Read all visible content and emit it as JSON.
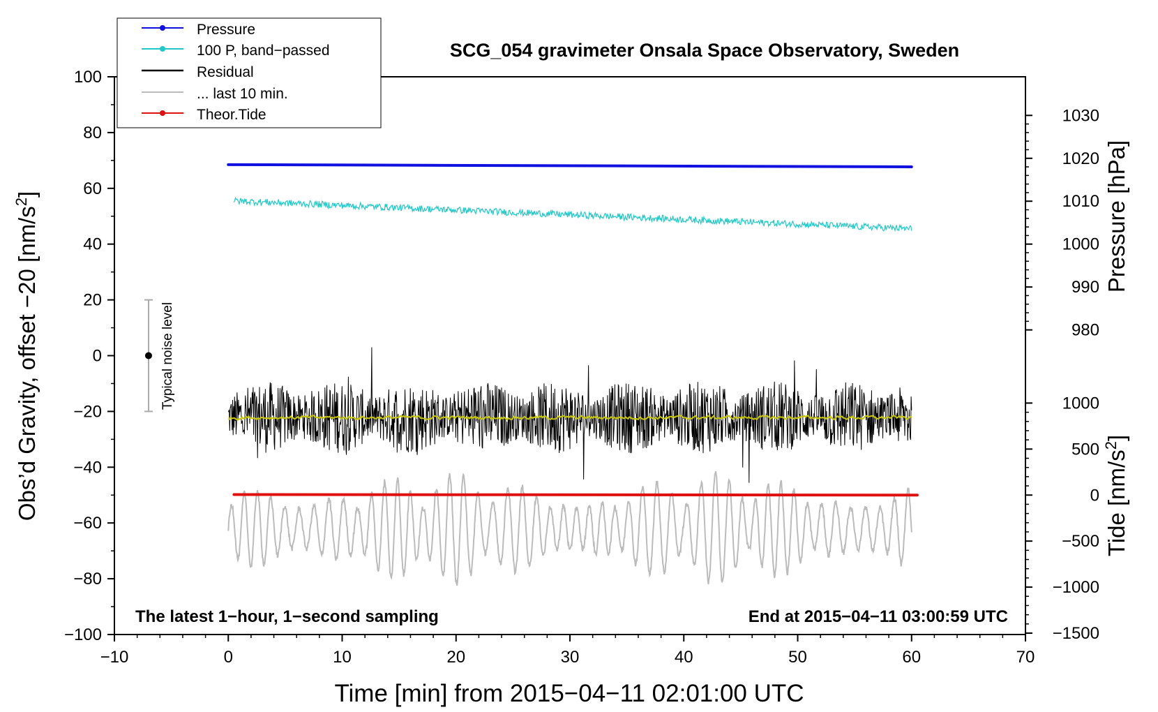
{
  "chart_data": {
    "type": "line",
    "title": "SCG_054 gravimeter Onsala Space Observatory, Sweden",
    "xlabel": "Time [min] from 2015−04−11 02:01:00 UTC",
    "ylabel_prefix": "Obs’d Gravity, offset −20 [nm/s",
    "ylabel_sup": "2",
    "ylabel_suffix": "]",
    "y2label": "Pressure [hPa]",
    "y3label_prefix": "Tide [nm/s",
    "y3label_sup": "2",
    "y3label_suffix": "]",
    "xlim": [
      -10,
      70
    ],
    "ylim": [
      -100,
      100
    ],
    "xticks": [
      -10,
      0,
      10,
      20,
      30,
      40,
      50,
      60,
      70
    ],
    "xtick_labels": [
      "−10",
      "0",
      "10",
      "20",
      "30",
      "40",
      "50",
      "60",
      "70"
    ],
    "yticks": [
      100,
      80,
      60,
      40,
      20,
      0,
      -20,
      -40,
      -60,
      -80,
      -100
    ],
    "ytick_labels": [
      "100",
      "80",
      "60",
      "40",
      "20",
      "0",
      "−20",
      "−40",
      "−60",
      "−80",
      "−100"
    ],
    "pressure_axis": {
      "ticks": [
        1030,
        1020,
        1010,
        1000,
        990,
        980
      ],
      "tick_labels": [
        "1030",
        "1020",
        "1010",
        "1000",
        "990",
        "980"
      ],
      "ref_value": 1000,
      "ref_y": 40,
      "units_per_y": 0.65
    },
    "tide_axis": {
      "ticks": [
        1000,
        500,
        0,
        -500,
        -1000,
        -1500
      ],
      "tick_labels": [
        "1000",
        "500",
        "0",
        "−500",
        "−1000",
        "−1500"
      ],
      "ref_value": 0,
      "ref_y": -50,
      "units_per_y": 30.3
    },
    "legend": {
      "placement": "top-left",
      "entries": [
        {
          "label": "Pressure",
          "color": "#1010e0",
          "marker": true
        },
        {
          "label": "100 P, band−passed",
          "color": "#20c8c8",
          "marker": true
        },
        {
          "label": "Residual",
          "color": "#000000",
          "marker": false
        },
        {
          "label": "... last 10 min.",
          "color": "#bbbbbb",
          "marker": false
        },
        {
          "label": "Theor.Tide",
          "color": "#e01010",
          "marker": true
        }
      ]
    },
    "annotations": {
      "left": "The latest 1−hour, 1−second sampling",
      "right": "End at 2015−04−11 03:00:59 UTC",
      "noise_label": "Typical noise level"
    },
    "noise_bar": {
      "x": -7,
      "center": 0,
      "half_range": 20
    },
    "series": [
      {
        "name": "Pressure",
        "kind": "line",
        "x_range": [
          0,
          60
        ],
        "start": 68.5,
        "end": 67.7,
        "color": "#1010e0"
      },
      {
        "name": "100 P, band−passed",
        "kind": "noisy",
        "x_range": [
          0.5,
          60
        ],
        "start": 55.5,
        "end": 45.5,
        "amplitude": 1.2,
        "color": "#20c8c8"
      },
      {
        "name": "Residual",
        "kind": "noisy",
        "x_range": [
          0,
          60
        ],
        "mean": -22,
        "amplitude": 13,
        "peak_max": 6,
        "peak_min": -48,
        "color": "#000000"
      },
      {
        "name": "Smoothed residual",
        "kind": "noisy",
        "x_range": [
          0,
          60
        ],
        "mean": -22.2,
        "amplitude": 0.6,
        "color": "#c8c800"
      },
      {
        "name": "... last 10 min.",
        "kind": "oscillating",
        "x_range": [
          0,
          60
        ],
        "mean": -62,
        "amplitude": 20,
        "peak_max": -36,
        "peak_min": -84,
        "color": "#bbbbbb"
      },
      {
        "name": "Theor.Tide",
        "kind": "line",
        "x_range": [
          0.5,
          60.5
        ],
        "start": -49.8,
        "end": -50.0,
        "color": "#e01010"
      }
    ]
  }
}
